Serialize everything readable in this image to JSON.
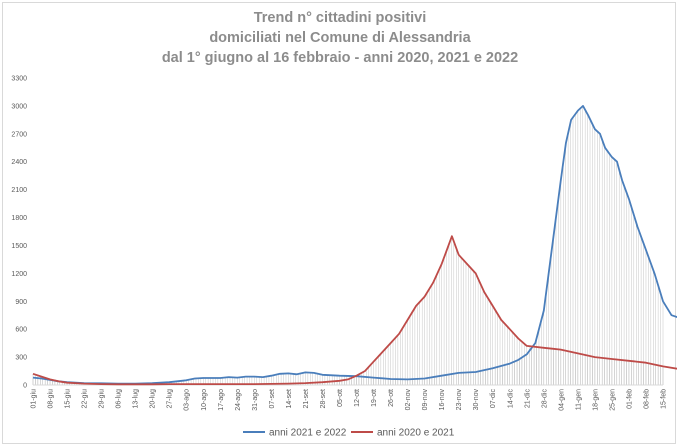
{
  "chart_data": {
    "type": "line",
    "title": [
      "Trend n° cittadini positivi",
      "domiciliati nel Comune di Alessandria",
      "dal 1° giugno al 16 febbraio - anni 2020, 2021 e 2022"
    ],
    "xlabel": "",
    "ylabel": "",
    "ylim": [
      0,
      3300
    ],
    "yticks": [
      "0",
      "300",
      "600",
      "900",
      "1200",
      "1500",
      "1800",
      "2100",
      "2400",
      "2700",
      "3000",
      "3300"
    ],
    "categories": [
      "01-giu",
      "08-giu",
      "15-giu",
      "22-giu",
      "29-giu",
      "06-lug",
      "13-lug",
      "20-lug",
      "27-lug",
      "03-ago",
      "10-ago",
      "17-ago",
      "24-ago",
      "31-ago",
      "07-set",
      "14-set",
      "21-set",
      "28-set",
      "05-ott",
      "12-ott",
      "19-ott",
      "26-ott",
      "02-nov",
      "09-nov",
      "16-nov",
      "23-nov",
      "30-nov",
      "07-dic",
      "14-dic",
      "21-dic",
      "28-dic",
      "04-gen",
      "11-gen",
      "18-gen",
      "25-gen",
      "01-feb",
      "08-feb",
      "15-feb"
    ],
    "grid": false,
    "legend": "bottom",
    "series": [
      {
        "name": "anni 2021 e 2022",
        "color": "#4a7ebb",
        "drop_lines": true,
        "points": [
          [
            0,
            80
          ],
          [
            0.5,
            70
          ],
          [
            1,
            55
          ],
          [
            1.5,
            40
          ],
          [
            2,
            30
          ],
          [
            3,
            20
          ],
          [
            4,
            18
          ],
          [
            5,
            15
          ],
          [
            6,
            15
          ],
          [
            7,
            20
          ],
          [
            8,
            30
          ],
          [
            9,
            50
          ],
          [
            9.5,
            70
          ],
          [
            10,
            75
          ],
          [
            11,
            75
          ],
          [
            11.5,
            85
          ],
          [
            12,
            80
          ],
          [
            12.5,
            90
          ],
          [
            13,
            90
          ],
          [
            13.5,
            85
          ],
          [
            14,
            100
          ],
          [
            14.5,
            120
          ],
          [
            15,
            125
          ],
          [
            15.5,
            115
          ],
          [
            16,
            135
          ],
          [
            16.5,
            130
          ],
          [
            17,
            110
          ],
          [
            18,
            100
          ],
          [
            19,
            95
          ],
          [
            20,
            80
          ],
          [
            21,
            65
          ],
          [
            22,
            60
          ],
          [
            23,
            70
          ],
          [
            24,
            100
          ],
          [
            25,
            130
          ],
          [
            26,
            140
          ],
          [
            27,
            180
          ],
          [
            28,
            230
          ],
          [
            28.5,
            270
          ],
          [
            29,
            330
          ],
          [
            29.5,
            450
          ],
          [
            30,
            800
          ],
          [
            30.5,
            1500
          ],
          [
            31,
            2200
          ],
          [
            31.3,
            2600
          ],
          [
            31.6,
            2850
          ],
          [
            32,
            2950
          ],
          [
            32.3,
            3000
          ],
          [
            32.6,
            2900
          ],
          [
            33,
            2750
          ],
          [
            33.3,
            2700
          ],
          [
            33.6,
            2550
          ],
          [
            34,
            2450
          ],
          [
            34.3,
            2400
          ],
          [
            34.6,
            2200
          ],
          [
            35,
            2000
          ],
          [
            35.5,
            1700
          ],
          [
            36,
            1450
          ],
          [
            36.5,
            1200
          ],
          [
            37,
            900
          ],
          [
            37.5,
            750
          ],
          [
            38,
            720
          ]
        ]
      },
      {
        "name": "anni 2020 e 2021",
        "color": "#be4b48",
        "drop_lines": true,
        "points": [
          [
            0,
            120
          ],
          [
            0.5,
            90
          ],
          [
            1,
            60
          ],
          [
            1.5,
            40
          ],
          [
            2,
            25
          ],
          [
            3,
            15
          ],
          [
            4,
            10
          ],
          [
            5,
            8
          ],
          [
            6,
            8
          ],
          [
            7,
            8
          ],
          [
            8,
            10
          ],
          [
            9,
            10
          ],
          [
            10,
            10
          ],
          [
            11,
            10
          ],
          [
            12,
            10
          ],
          [
            13,
            10
          ],
          [
            14,
            12
          ],
          [
            15,
            15
          ],
          [
            16,
            20
          ],
          [
            17,
            30
          ],
          [
            18,
            45
          ],
          [
            18.5,
            60
          ],
          [
            19,
            100
          ],
          [
            19.5,
            150
          ],
          [
            20,
            250
          ],
          [
            20.5,
            350
          ],
          [
            21,
            450
          ],
          [
            21.5,
            550
          ],
          [
            22,
            700
          ],
          [
            22.5,
            850
          ],
          [
            23,
            950
          ],
          [
            23.5,
            1100
          ],
          [
            24,
            1300
          ],
          [
            24.3,
            1450
          ],
          [
            24.6,
            1600
          ],
          [
            25,
            1400
          ],
          [
            25.5,
            1300
          ],
          [
            26,
            1200
          ],
          [
            26.5,
            1000
          ],
          [
            27,
            850
          ],
          [
            27.5,
            700
          ],
          [
            28,
            600
          ],
          [
            28.5,
            500
          ],
          [
            29,
            420
          ],
          [
            30,
            400
          ],
          [
            30.5,
            390
          ],
          [
            31,
            380
          ],
          [
            32,
            340
          ],
          [
            33,
            300
          ],
          [
            34,
            280
          ],
          [
            35,
            260
          ],
          [
            36,
            240
          ],
          [
            37,
            200
          ],
          [
            38,
            170
          ]
        ]
      }
    ]
  }
}
